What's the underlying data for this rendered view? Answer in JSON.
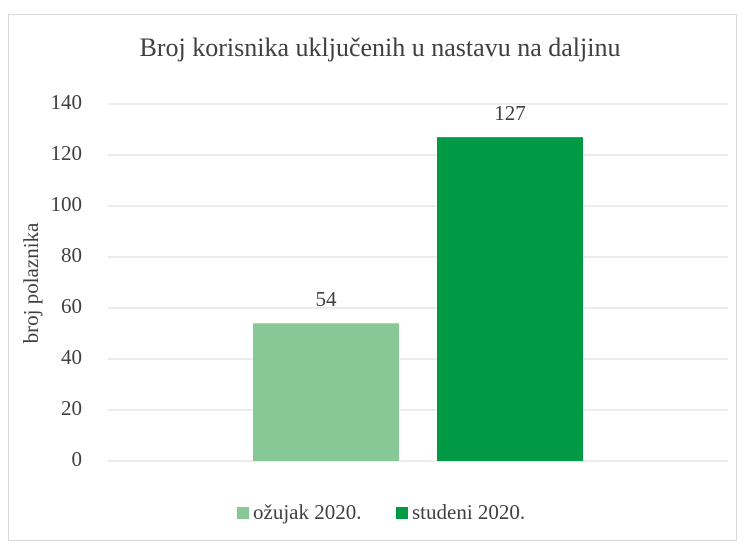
{
  "chart_data": {
    "type": "bar",
    "title": "Broj korisnika uključenih u nastavu na daljinu",
    "ylabel": "broj polaznika",
    "categories": [
      null
    ],
    "series": [
      {
        "name": "ožujak 2020.",
        "color": "#88c896",
        "values": [
          54
        ]
      },
      {
        "name": "studeni 2020.",
        "color": "#009a44",
        "values": [
          127
        ]
      }
    ],
    "ylim": [
      0,
      140
    ],
    "yticks": [
      0,
      20,
      40,
      60,
      80,
      100,
      120,
      140
    ],
    "grid": true,
    "legend": "bottom"
  }
}
